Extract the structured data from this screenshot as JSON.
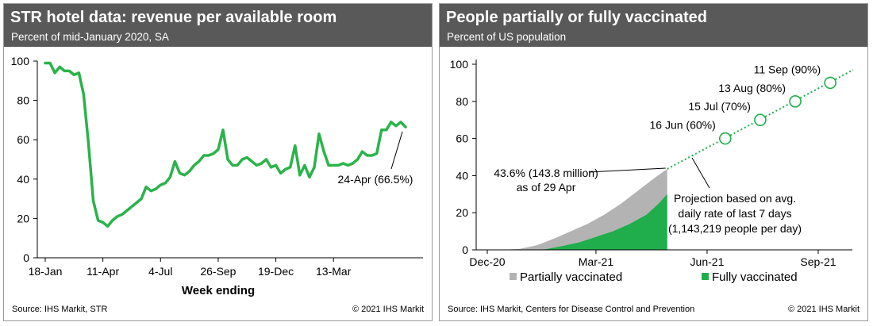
{
  "chart_data": [
    {
      "type": "line",
      "title": "STR hotel data: revenue per available room",
      "subtitle": "Percent of mid-January 2020, SA",
      "xlabel": "Week ending",
      "ylabel": "",
      "ylim": [
        0,
        100
      ],
      "yticks": [
        0,
        20,
        40,
        60,
        80,
        100
      ],
      "xticks": [
        "18-Jan",
        "11-Apr",
        "4-Jul",
        "26-Sep",
        "19-Dec",
        "13-Mar"
      ],
      "xtick_weeks": [
        0,
        12,
        24,
        36,
        48,
        60
      ],
      "series": [
        {
          "color": "#2bb34a",
          "values": [
            99,
            99,
            94,
            97,
            95,
            95,
            93,
            94,
            83,
            58,
            29,
            19,
            18,
            16,
            19,
            21,
            22,
            24,
            26,
            28,
            30,
            36,
            34,
            35,
            37,
            38,
            41,
            49,
            43,
            42,
            44,
            47,
            49,
            52,
            52,
            53,
            55,
            65,
            50,
            47,
            47,
            50,
            51,
            49,
            47,
            48,
            50,
            46,
            47,
            43,
            45,
            46,
            57,
            42,
            47,
            41,
            46,
            63,
            54,
            47,
            47,
            47,
            48,
            47,
            48,
            50,
            54,
            52,
            52,
            53,
            65,
            65,
            69,
            67,
            69,
            66.5
          ]
        }
      ],
      "annotations": [
        {
          "text": "24-Apr (66.5%)"
        }
      ],
      "grid": false,
      "legend": "none"
    },
    {
      "type": "area",
      "title": "People partially or fully vaccinated",
      "subtitle": "Percent of US population",
      "ylim": [
        0,
        100
      ],
      "yticks": [
        0,
        20,
        40,
        60,
        80,
        100
      ],
      "xticks": [
        "Dec-20",
        "Mar-21",
        "Jun-21",
        "Sep-21"
      ],
      "xtick_dates": [
        "2020-12-01",
        "2021-03-01",
        "2021-06-01",
        "2021-09-01"
      ],
      "series": [
        {
          "name": "Partially vaccinated",
          "color": "#b3b3b3",
          "dates": [
            "2020-12-14",
            "2020-12-28",
            "2021-01-11",
            "2021-01-25",
            "2021-02-08",
            "2021-02-22",
            "2021-03-08",
            "2021-03-22",
            "2021-04-05",
            "2021-04-19",
            "2021-04-29"
          ],
          "values": [
            0,
            0.5,
            2.5,
            6,
            10,
            14,
            19,
            25,
            32,
            39,
            43.6
          ]
        },
        {
          "name": "Fully vaccinated",
          "color": "#1fae4b",
          "dates": [
            "2020-12-14",
            "2021-01-04",
            "2021-01-18",
            "2021-02-01",
            "2021-02-15",
            "2021-03-01",
            "2021-03-15",
            "2021-03-29",
            "2021-04-12",
            "2021-04-22",
            "2021-04-29"
          ],
          "values": [
            0,
            0,
            0.3,
            2,
            4,
            7,
            10,
            14,
            19,
            25,
            30
          ]
        },
        {
          "name": "Projection",
          "color": "#1fae4b",
          "style": "dotted",
          "dates": [
            "2021-04-29",
            "2021-09-30"
          ],
          "values": [
            43.6,
            97
          ]
        }
      ],
      "milestones": [
        {
          "date": "2021-06-16",
          "value": 60,
          "label": "16 Jun (60%)"
        },
        {
          "date": "2021-07-15",
          "value": 70,
          "label": "15 Jul (70%)"
        },
        {
          "date": "2021-08-13",
          "value": 80,
          "label": "13 Aug (80%)"
        },
        {
          "date": "2021-09-11",
          "value": 90,
          "label": "11 Sep (90%)"
        }
      ],
      "annotations": [
        {
          "text": "43.6% (143.8 million)\nas of 29 Apr"
        },
        {
          "text": "Projection based on avg.\ndaily rate of last 7 days\n(1,143,219 people per day)"
        }
      ],
      "grid": false,
      "legend": "bottom"
    }
  ],
  "left": {
    "title": "STR hotel data: revenue per available room",
    "subtitle": "Percent of mid-January 2020, SA",
    "source": "Source: IHS Markit, STR",
    "copyright": "© 2021 IHS Markit"
  },
  "right": {
    "title": "People partially or fully vaccinated",
    "subtitle": "Percent of US population",
    "source": "Source: IHS Markit, Centers for Disease Control and Prevention",
    "copyright": "© 2021 IHS Markit"
  }
}
